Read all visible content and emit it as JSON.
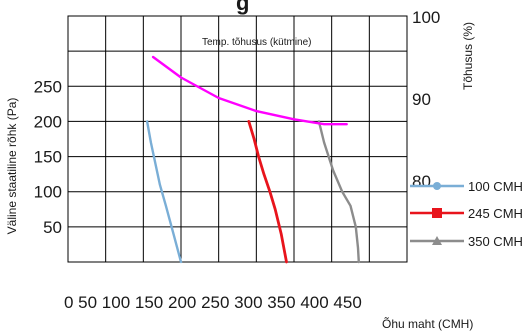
{
  "chart_data": {
    "type": "line",
    "title": "",
    "title_partial": "g",
    "xlabel": "Õhu maht (CMH)",
    "ylabel": "Väline staatiline rõhk (Pa)",
    "y2label": "Tõhusus (%)",
    "xlim": [
      0,
      450
    ],
    "ylim": [
      0,
      350
    ],
    "y2lim": [
      70,
      100
    ],
    "xticks": [
      "0",
      "50",
      "100",
      "150",
      "200",
      "250",
      "300",
      "350",
      "400",
      "450"
    ],
    "yticks": [
      "50",
      "100",
      "150",
      "200",
      "250"
    ],
    "y2ticks": [
      "80",
      "90",
      "100"
    ],
    "grid": true,
    "legend_position": "right",
    "series": [
      {
        "name": "100 CMH",
        "color": "#7aaed6",
        "marker": "circle",
        "axis": "left",
        "x": [
          105,
          110,
          116,
          122,
          130,
          140,
          150
        ],
        "y": [
          200,
          170,
          140,
          110,
          80,
          40,
          0
        ]
      },
      {
        "name": "245 CMH",
        "color": "#e8141c",
        "marker": "square",
        "axis": "left",
        "x": [
          240,
          247,
          253,
          260,
          268,
          275,
          283,
          290
        ],
        "y": [
          200,
          175,
          150,
          125,
          100,
          75,
          40,
          0
        ]
      },
      {
        "name": "350 CMH",
        "color": "#8c8c8c",
        "marker": "triangle",
        "axis": "left",
        "x": [
          333,
          340,
          352,
          364,
          375,
          382,
          385,
          386
        ],
        "y": [
          200,
          170,
          130,
          100,
          80,
          50,
          20,
          0
        ]
      },
      {
        "name": "",
        "color": "#ff00ff",
        "marker": "none",
        "axis": "right",
        "x": [
          113,
          150,
          200,
          250,
          300,
          340,
          370
        ],
        "y": [
          95,
          92.5,
          90,
          88.4,
          87.4,
          86.8,
          86.8
        ]
      }
    ],
    "annotations": [
      {
        "text": "Temp. tõhusus (kütmine)"
      }
    ]
  }
}
